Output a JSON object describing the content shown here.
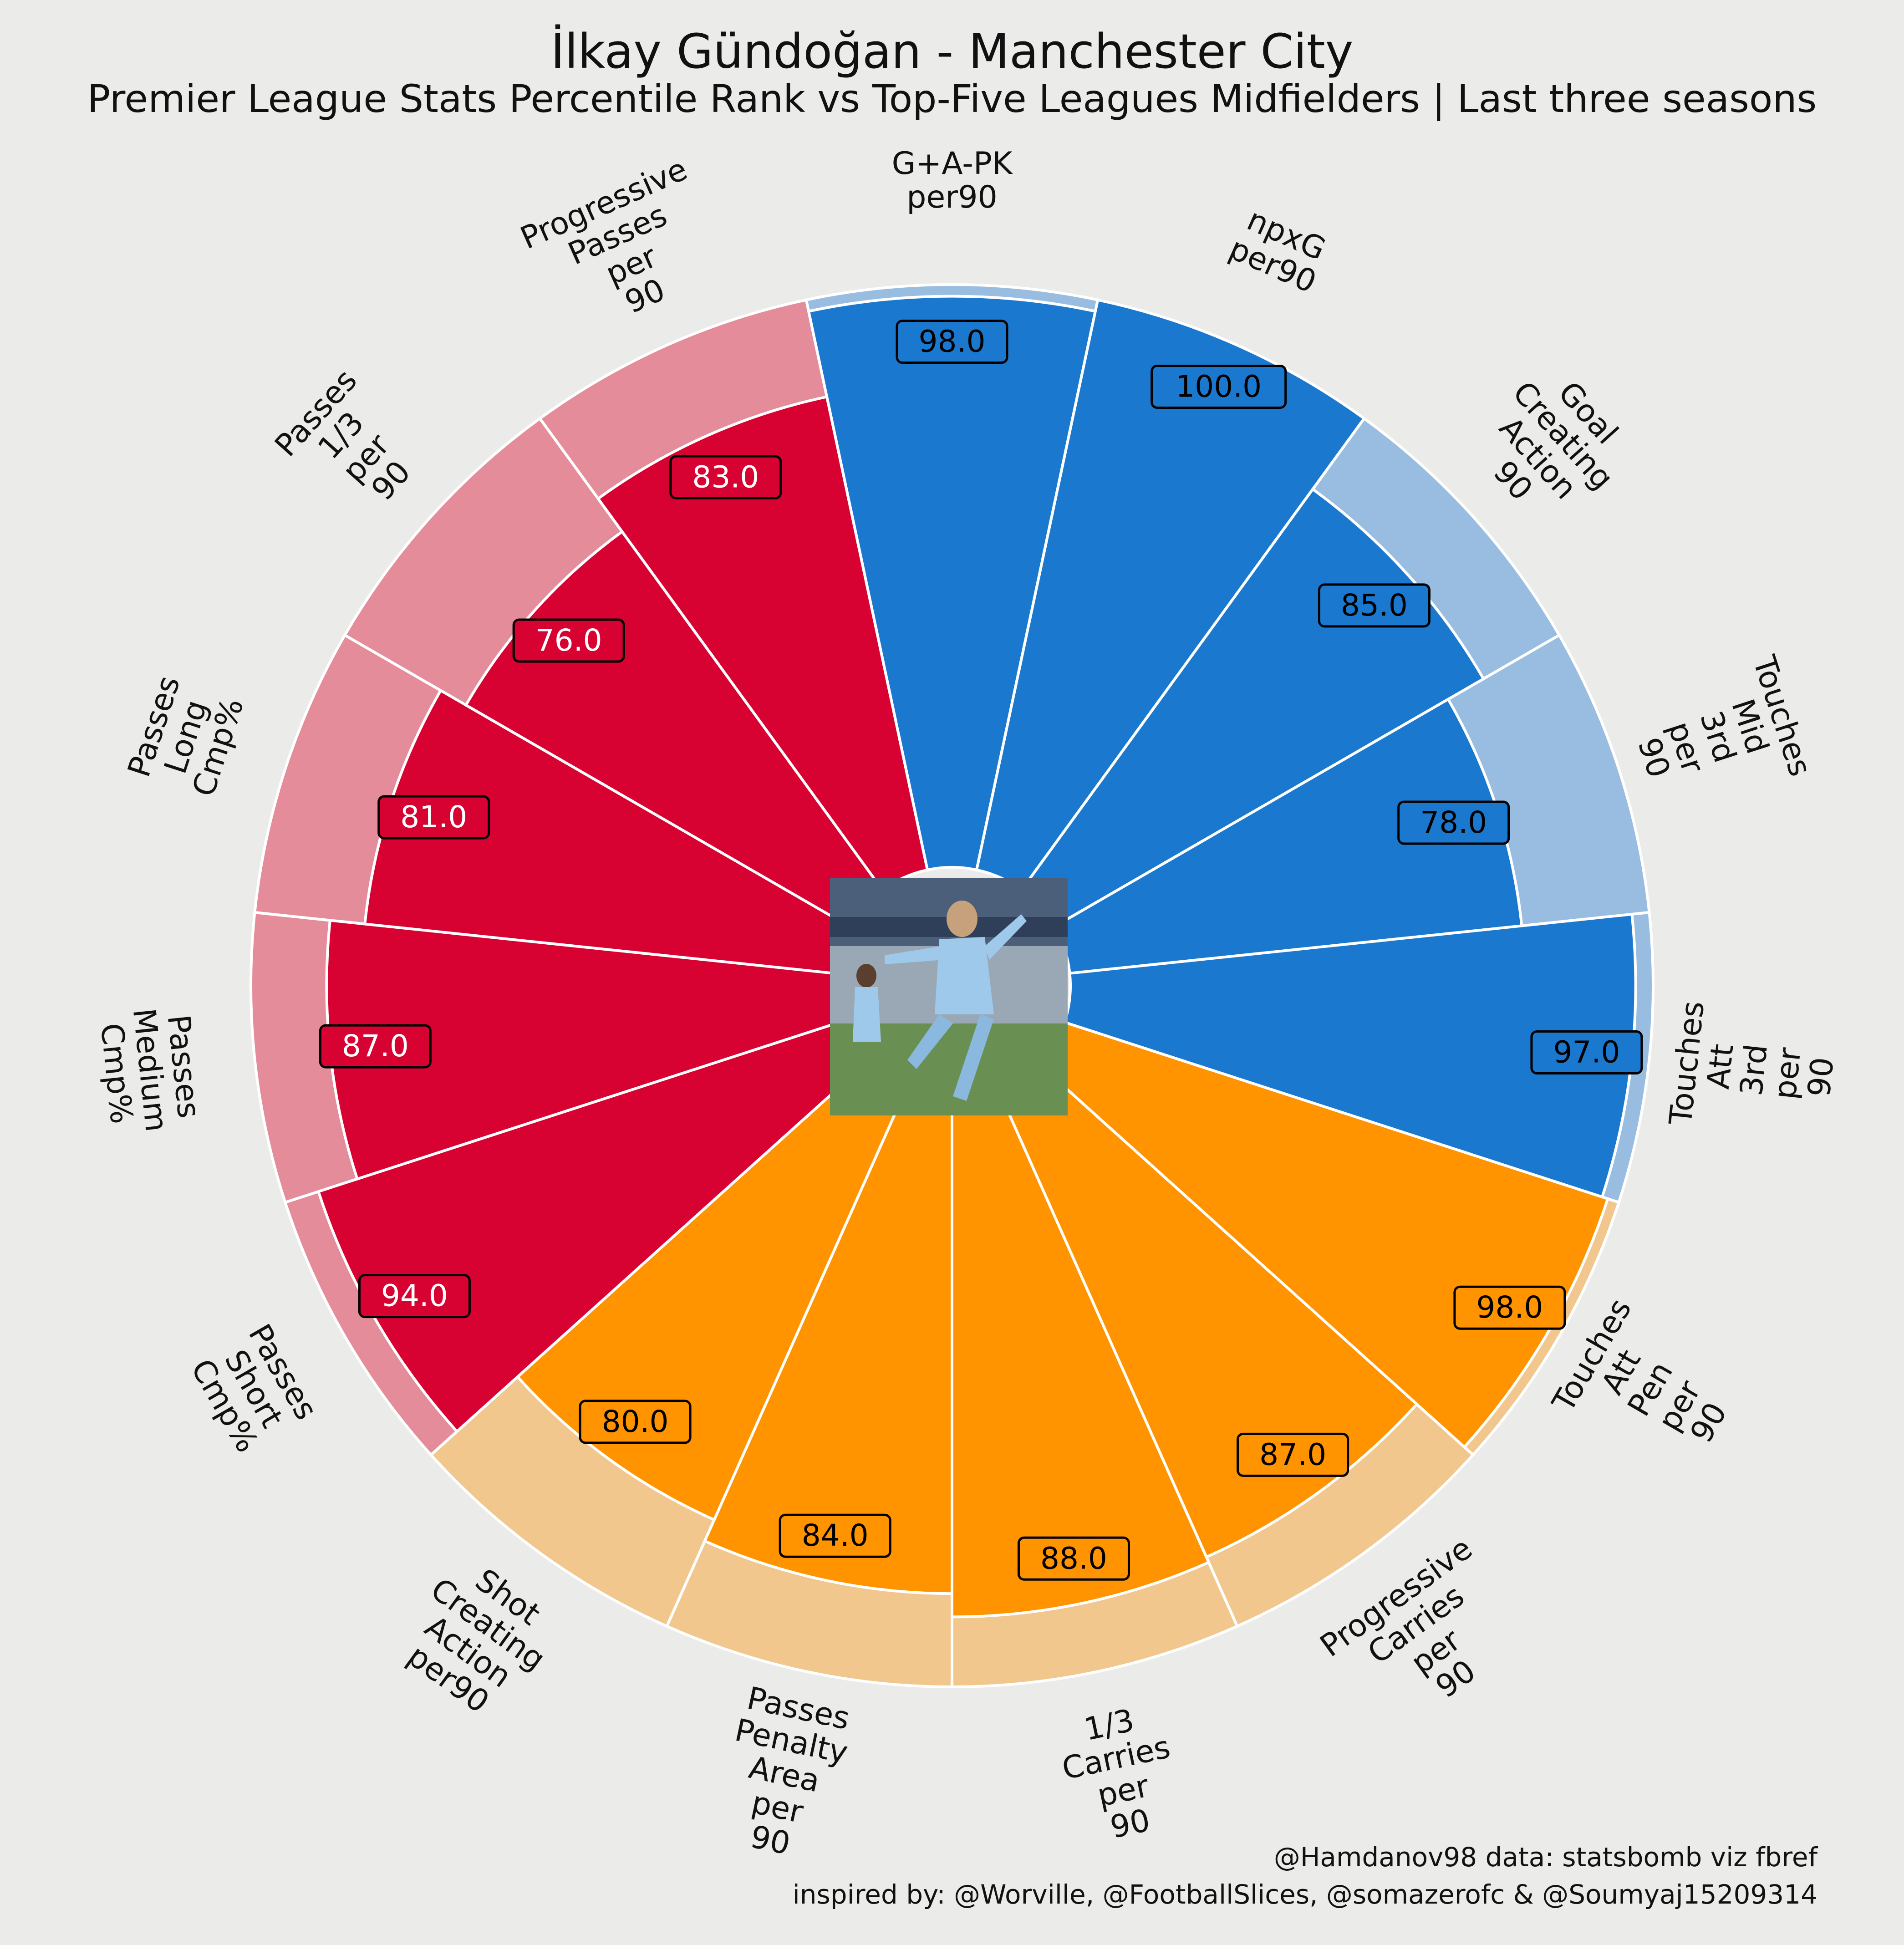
{
  "header": {
    "title": "İlkay Gündoğan - Manchester City",
    "subtitle": "Premier League Stats Percentile Rank vs Top-Five Leagues Midfielders | Last three seasons"
  },
  "footer": {
    "credit": "@Hamdanov98 data: statsbomb viz fbref",
    "inspired": "inspired by: @Worville, @FootballSlices, @somazerofc & @Soumyaj15209314"
  },
  "colors": {
    "background": "#ebebe9",
    "attacking": "#1b78cf",
    "attacking_light": "#99bde1",
    "possession": "#ff9300",
    "possession_light": "#f2c78d",
    "passing": "#d70232",
    "passing_light": "#e48c9a",
    "edge": "#ffffff"
  },
  "center_image": "player photo (Gündoğan celebrating, Etihad Stadium)",
  "chart_data": {
    "type": "radial_bar",
    "range": [
      0,
      100
    ],
    "categories": [
      "G+A-PK\nper90",
      "npxG\nper90",
      "Goal\nCreating\nAction\n90",
      "Touches\nMid\n3rd\nper\n90",
      "Touches\nAtt\n3rd\nper\n90",
      "Touches\nAtt\nPen\nper\n90",
      "Progressive\nCarries\nper\n90",
      "1/3\nCarries\nper\n90",
      "Passes\nPenalty\nArea\nper\n90",
      "Shot\nCreating\nAction\nper90",
      "Passes\nShort\nCmp%",
      "Passes\nMedium\nCmp%",
      "Passes\nLong\nCmp%",
      "Passes\n1/3\nper\n90",
      "Progressive\nPasses\nper\n90"
    ],
    "values": [
      98.0,
      100.0,
      85.0,
      78.0,
      97.0,
      98.0,
      87.0,
      88.0,
      84.0,
      80.0,
      94.0,
      87.0,
      81.0,
      76.0,
      83.0
    ],
    "value_labels": [
      "98.0",
      "100.0",
      "85.0",
      "78.0",
      "97.0",
      "98.0",
      "87.0",
      "88.0",
      "84.0",
      "80.0",
      "94.0",
      "87.0",
      "81.0",
      "76.0",
      "83.0"
    ],
    "groups": [
      "attacking",
      "attacking",
      "attacking",
      "attacking",
      "attacking",
      "possession",
      "possession",
      "possession",
      "possession",
      "possession",
      "passing",
      "passing",
      "passing",
      "passing",
      "passing"
    ]
  }
}
